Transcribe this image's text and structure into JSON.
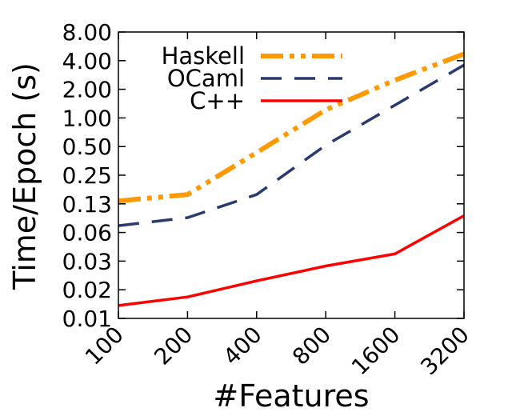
{
  "chart_data": {
    "type": "line",
    "xlabel": "#Features",
    "ylabel": "Time/Epoch (s)",
    "x_scale": "log2",
    "y_scale": "log2",
    "categories": [
      "100",
      "200",
      "400",
      "800",
      "1600",
      "3200"
    ],
    "x": [
      100,
      200,
      400,
      800,
      1600,
      3200
    ],
    "ylim": [
      0.01,
      8.0
    ],
    "y_ticks": [
      0.01,
      0.02,
      0.03,
      0.06,
      0.13,
      0.25,
      0.5,
      1.0,
      2.0,
      4.0,
      8.0
    ],
    "y_tick_labels": [
      "0.01",
      "0.02",
      "0.03",
      "0.06",
      "0.13",
      "0.25",
      "0.50",
      "1.00",
      "2.00",
      "4.00",
      "8.00"
    ],
    "grid": false,
    "legend_position": "top-left",
    "series": [
      {
        "name": "Haskell",
        "values": [
          0.155,
          0.18,
          0.48,
          1.3,
          2.6,
          4.8
        ],
        "color": "#ff9900",
        "dash": "dash-dot-dot"
      },
      {
        "name": "OCaml",
        "values": [
          0.087,
          0.105,
          0.18,
          0.57,
          1.45,
          3.7
        ],
        "color": "#2a3a6e",
        "dash": "long-dash"
      },
      {
        "name": "C++",
        "values": [
          0.0135,
          0.0165,
          0.024,
          0.034,
          0.045,
          0.11
        ],
        "color": "#ff0000",
        "dash": "solid"
      }
    ]
  }
}
